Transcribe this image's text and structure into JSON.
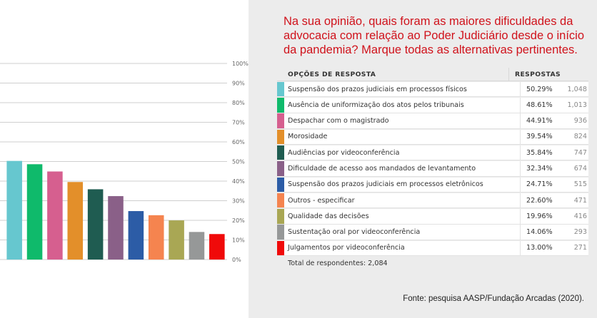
{
  "question": "Na sua opinião, quais foram as maiores dificuldades da advocacia com relação ao Poder Judiciário desde o início da pandemia? Marque todas as alternativas pertinentes.",
  "table": {
    "header_option": "OPÇÕES DE RESPOSTA",
    "header_response": "RESPOSTAS",
    "rows": [
      {
        "label": "Suspensão dos prazos judiciais em processos físicos",
        "pct": "50.29%",
        "count": "1,048",
        "color": "#66c7cf"
      },
      {
        "label": "Ausência de uniformização dos atos pelos tribunais",
        "pct": "48.61%",
        "count": "1,013",
        "color": "#0fba6b"
      },
      {
        "label": "Despachar com o magistrado",
        "pct": "44.91%",
        "count": "936",
        "color": "#d65f8f"
      },
      {
        "label": "Morosidade",
        "pct": "39.54%",
        "count": "824",
        "color": "#e38f2a"
      },
      {
        "label": "Audiências por videoconferência",
        "pct": "35.84%",
        "count": "747",
        "color": "#1f5c51"
      },
      {
        "label": "Dificuldade de acesso aos mandados de levantamento",
        "pct": "32.34%",
        "count": "674",
        "color": "#8a6088"
      },
      {
        "label": "Suspensão dos prazos judiciais em processos eletrônicos",
        "pct": "24.71%",
        "count": "515",
        "color": "#2c5ca6"
      },
      {
        "label": "Outros   - especificar",
        "pct": "22.60%",
        "count": "471",
        "color": "#f5844f"
      },
      {
        "label": "Qualidade das decisões",
        "pct": "19.96%",
        "count": "416",
        "color": "#a9a754"
      },
      {
        "label": "Sustentação oral por videoconferência",
        "pct": "14.06%",
        "count": "293",
        "color": "#969898"
      },
      {
        "label": "Julgamentos por videoconferência",
        "pct": "13.00%",
        "count": "271",
        "color": "#f00a0a"
      }
    ],
    "total": "Total de respondentes: 2,084"
  },
  "source": "Fonte: pesquisa AASP/Fundação Arcadas (2020).",
  "chart_data": {
    "type": "bar",
    "categories": [
      "Suspensão dos prazos judiciais em processos físicos",
      "Ausência de uniformização dos atos pelos tribunais",
      "Despachar com o magistrado",
      "Morosidade",
      "Audiências por videoconferência",
      "Dificuldade de acesso aos mandados de levantamento",
      "Suspensão dos prazos judiciais em processos eletrônicos",
      "Outros   - especificar",
      "Qualidade das decisões",
      "Sustentação oral por videoconferência",
      "Julgamentos por videoconferência"
    ],
    "values": [
      50.29,
      48.61,
      44.91,
      39.54,
      35.84,
      32.34,
      24.71,
      22.6,
      19.96,
      14.06,
      13.0
    ],
    "colors": [
      "#66c7cf",
      "#0fba6b",
      "#d65f8f",
      "#e38f2a",
      "#1f5c51",
      "#8a6088",
      "#2c5ca6",
      "#f5844f",
      "#a9a754",
      "#969898",
      "#f00a0a"
    ],
    "ylim": [
      0,
      100
    ],
    "yticks": [
      "0%",
      "10%",
      "20%",
      "30%",
      "40%",
      "50%",
      "60%",
      "70%",
      "80%",
      "90%",
      "100%"
    ],
    "grid": true,
    "legend": "none"
  }
}
